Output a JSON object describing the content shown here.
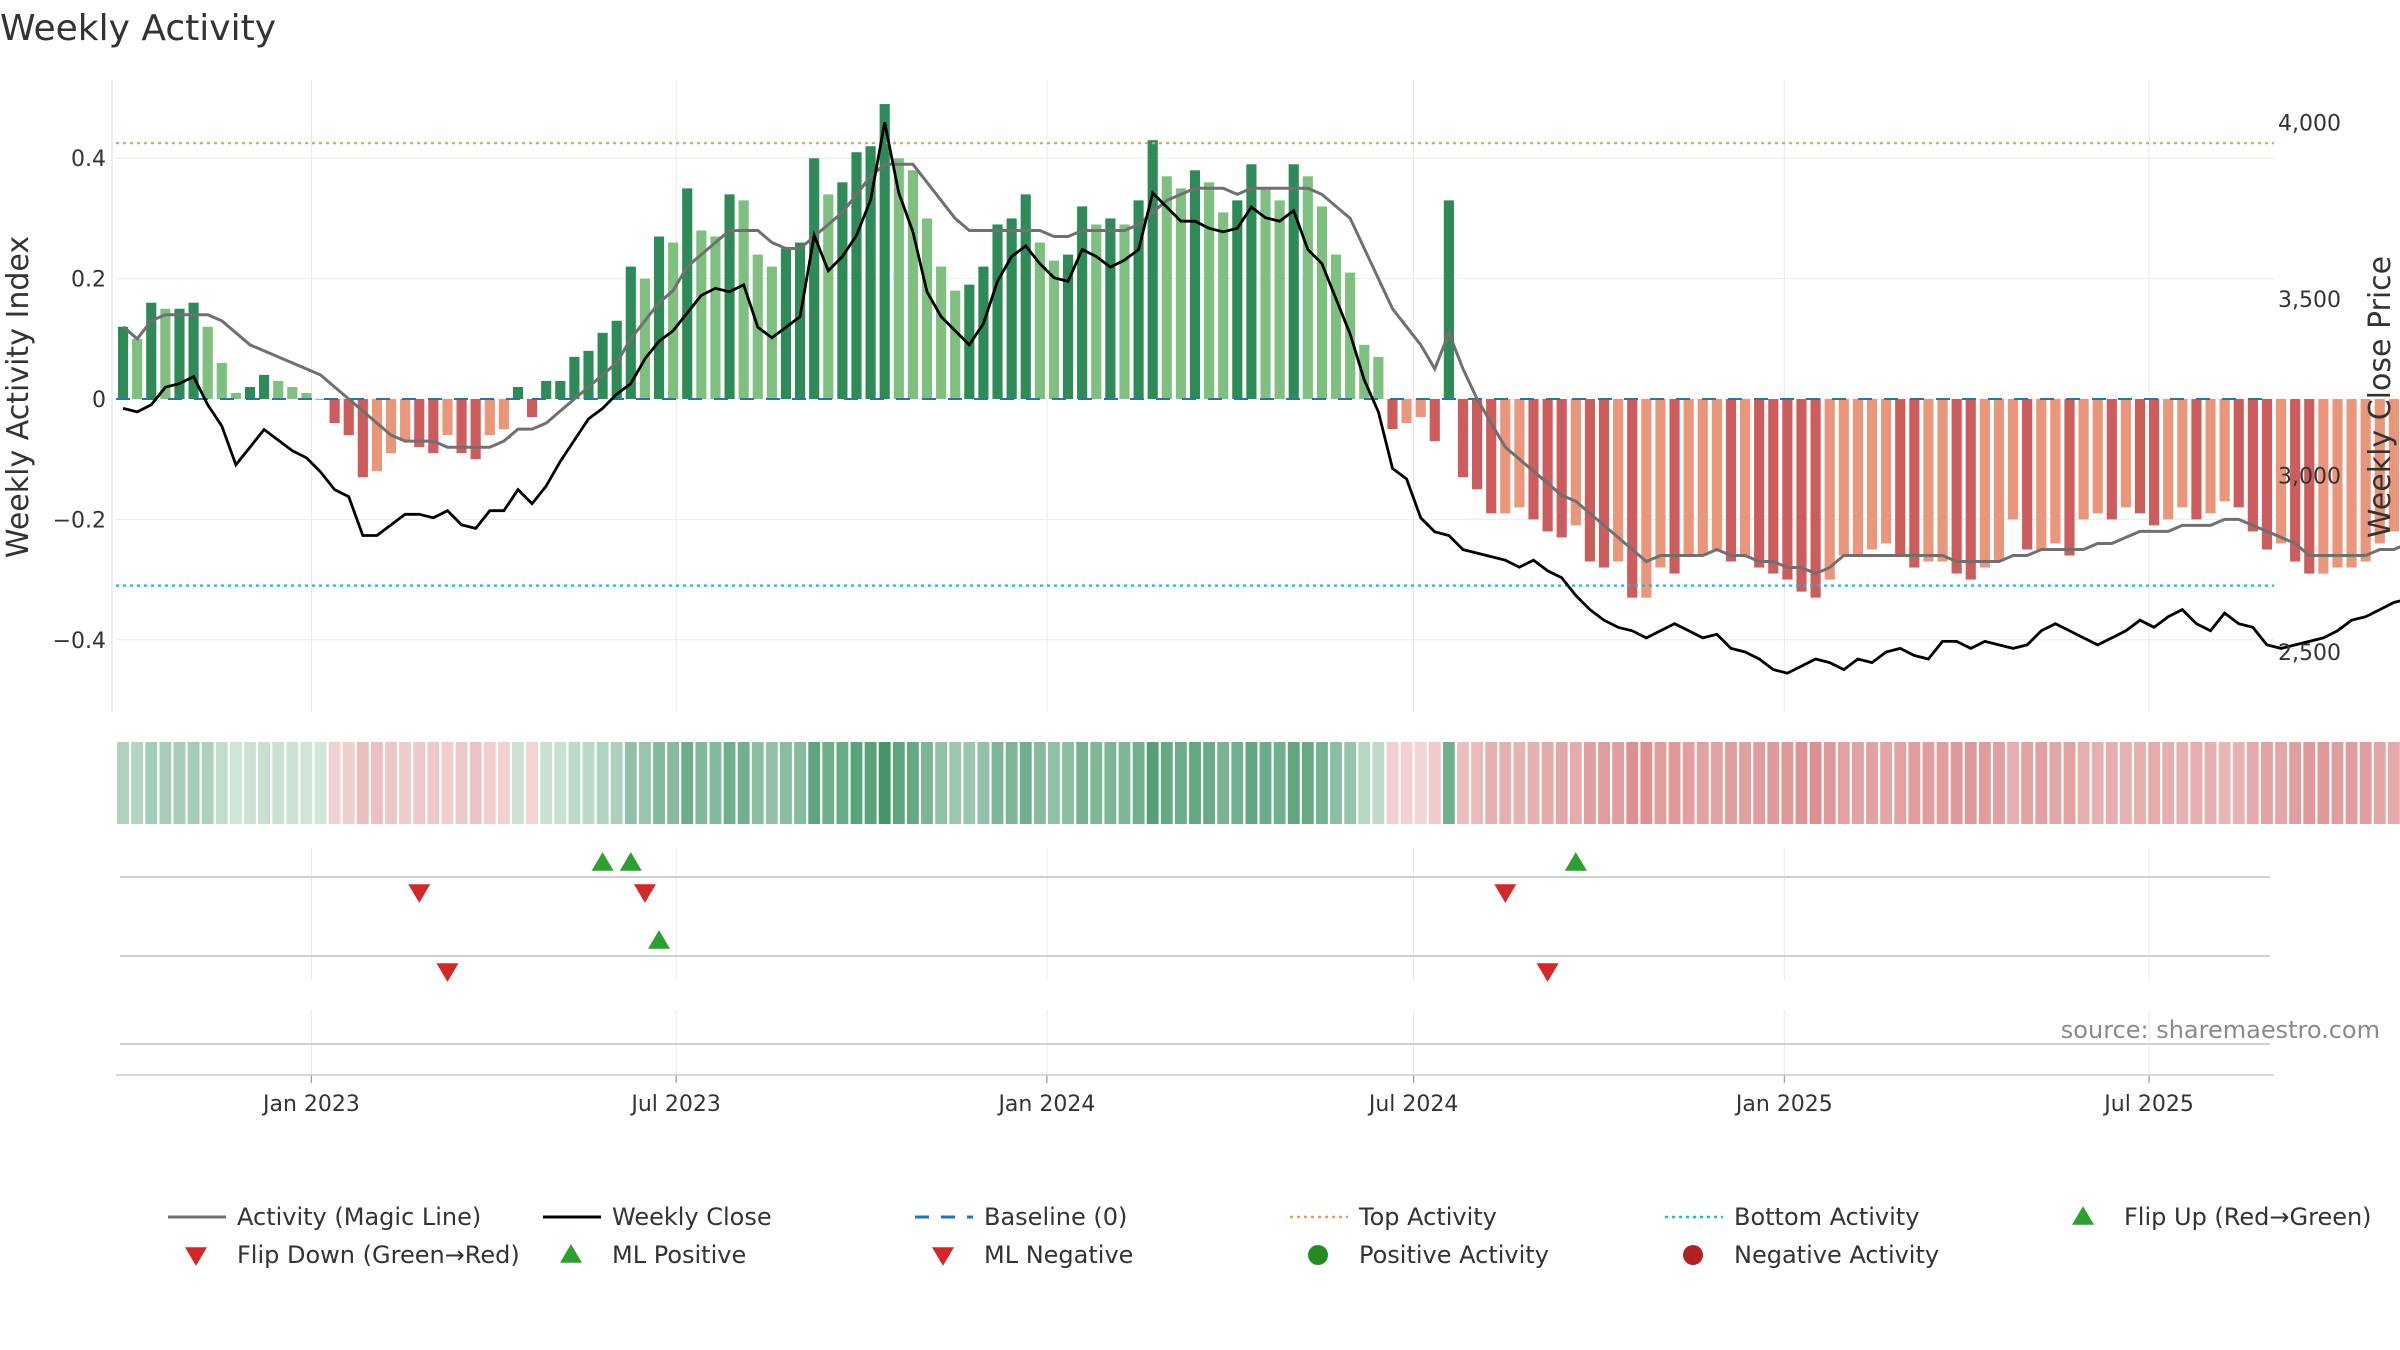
{
  "chart_data": {
    "type": "bar",
    "title": "Weekly Activity",
    "ylabel_left": "Weekly Activity Index",
    "ylabel_right": "Weekly Close Price",
    "source": "source: sharemaestro.com",
    "ylim_left": [
      -0.52,
      0.53
    ],
    "ylim_right": [
      2330,
      4120
    ],
    "yticks_left": [
      {
        "value": 0.4,
        "label": "0.4"
      },
      {
        "value": 0.2,
        "label": "0.2"
      },
      {
        "value": 0,
        "label": "0"
      },
      {
        "value": -0.2,
        "label": "−0.2"
      },
      {
        "value": -0.4,
        "label": "−0.4"
      }
    ],
    "yticks_right": [
      {
        "value": 4000,
        "label": "4,000"
      },
      {
        "value": 3500,
        "label": "3,500"
      },
      {
        "value": 3000,
        "label": "3,000"
      },
      {
        "value": 2500,
        "label": "2,500"
      }
    ],
    "xlim": [
      "2022-09-26",
      "2025-09-01"
    ],
    "x_ticks": [
      {
        "date": "2023-01-01",
        "label": "Jan 2023"
      },
      {
        "date": "2023-07-01",
        "label": "Jul 2023"
      },
      {
        "date": "2024-01-01",
        "label": "Jan 2024"
      },
      {
        "date": "2024-07-01",
        "label": "Jul 2024"
      },
      {
        "date": "2025-01-01",
        "label": "Jan 2025"
      },
      {
        "date": "2025-07-01",
        "label": "Jul 2025"
      }
    ],
    "week_start": "2022-09-26",
    "reference_lines": {
      "top_activity": 0.425,
      "bottom_activity": -0.31,
      "baseline": 0
    },
    "activity": [
      0.12,
      0.1,
      0.16,
      0.15,
      0.15,
      0.16,
      0.12,
      0.06,
      0.01,
      0.02,
      0.04,
      0.03,
      0.02,
      0.01,
      0,
      -0.04,
      -0.06,
      -0.13,
      -0.12,
      -0.09,
      -0.07,
      -0.08,
      -0.09,
      -0.06,
      -0.09,
      -0.1,
      -0.06,
      -0.05,
      0.02,
      -0.03,
      0.03,
      0.03,
      0.07,
      0.08,
      0.11,
      0.13,
      0.22,
      0.2,
      0.27,
      0.26,
      0.35,
      0.28,
      0.27,
      0.34,
      0.33,
      0.24,
      0.22,
      0.25,
      0.26,
      0.4,
      0.34,
      0.36,
      0.41,
      0.42,
      0.49,
      0.4,
      0.38,
      0.3,
      0.22,
      0.18,
      0.19,
      0.22,
      0.29,
      0.3,
      0.34,
      0.26,
      0.23,
      0.24,
      0.32,
      0.29,
      0.3,
      0.29,
      0.33,
      0.43,
      0.37,
      0.35,
      0.38,
      0.36,
      0.31,
      0.33,
      0.39,
      0.35,
      0.33,
      0.39,
      0.37,
      0.32,
      0.24,
      0.21,
      0.09,
      0.07,
      -0.05,
      -0.04,
      -0.03,
      -0.07,
      0.33,
      -0.13,
      -0.15,
      -0.19,
      -0.19,
      -0.18,
      -0.2,
      -0.22,
      -0.23,
      -0.21,
      -0.27,
      -0.28,
      -0.27,
      -0.33,
      -0.33,
      -0.28,
      -0.29,
      -0.26,
      -0.26,
      -0.25,
      -0.27,
      -0.26,
      -0.28,
      -0.29,
      -0.3,
      -0.32,
      -0.33,
      -0.3,
      -0.26,
      -0.26,
      -0.25,
      -0.24,
      -0.26,
      -0.28,
      -0.27,
      -0.27,
      -0.29,
      -0.3,
      -0.28,
      -0.27,
      -0.2,
      -0.25,
      -0.25,
      -0.24,
      -0.26,
      -0.2,
      -0.19,
      -0.2,
      -0.18,
      -0.19,
      -0.21,
      -0.2,
      -0.18,
      -0.2,
      -0.19,
      -0.17,
      -0.18,
      -0.22,
      -0.25,
      -0.24,
      -0.27,
      -0.29,
      -0.29,
      -0.28,
      -0.28,
      -0.27,
      -0.24,
      -0.22,
      -0.2,
      -0.23,
      -0.2,
      -0.22,
      -0.19,
      -0.18
    ],
    "magic_line": [
      0.12,
      0.1,
      0.13,
      0.14,
      0.14,
      0.14,
      0.14,
      0.13,
      0.11,
      0.09,
      0.08,
      0.07,
      0.06,
      0.05,
      0.04,
      0.02,
      0,
      -0.02,
      -0.04,
      -0.06,
      -0.07,
      -0.07,
      -0.07,
      -0.08,
      -0.08,
      -0.08,
      -0.08,
      -0.07,
      -0.05,
      -0.05,
      -0.04,
      -0.02,
      0,
      0.02,
      0.04,
      0.06,
      0.1,
      0.13,
      0.16,
      0.18,
      0.22,
      0.24,
      0.26,
      0.28,
      0.28,
      0.28,
      0.26,
      0.25,
      0.25,
      0.27,
      0.29,
      0.31,
      0.34,
      0.37,
      0.39,
      0.39,
      0.39,
      0.36,
      0.33,
      0.3,
      0.28,
      0.28,
      0.28,
      0.28,
      0.28,
      0.28,
      0.27,
      0.27,
      0.28,
      0.28,
      0.28,
      0.28,
      0.29,
      0.31,
      0.33,
      0.34,
      0.35,
      0.35,
      0.35,
      0.34,
      0.35,
      0.35,
      0.35,
      0.35,
      0.35,
      0.34,
      0.32,
      0.3,
      0.25,
      0.2,
      0.15,
      0.12,
      0.09,
      0.05,
      0.11,
      0.05,
      0,
      -0.04,
      -0.08,
      -0.1,
      -0.12,
      -0.14,
      -0.16,
      -0.17,
      -0.19,
      -0.21,
      -0.23,
      -0.25,
      -0.27,
      -0.26,
      -0.26,
      -0.26,
      -0.26,
      -0.25,
      -0.26,
      -0.26,
      -0.27,
      -0.27,
      -0.28,
      -0.28,
      -0.29,
      -0.28,
      -0.26,
      -0.26,
      -0.26,
      -0.26,
      -0.26,
      -0.26,
      -0.26,
      -0.26,
      -0.27,
      -0.27,
      -0.27,
      -0.27,
      -0.26,
      -0.26,
      -0.25,
      -0.25,
      -0.25,
      -0.25,
      -0.24,
      -0.24,
      -0.23,
      -0.22,
      -0.22,
      -0.22,
      -0.21,
      -0.21,
      -0.21,
      -0.2,
      -0.2,
      -0.21,
      -0.22,
      -0.23,
      -0.24,
      -0.26,
      -0.26,
      -0.26,
      -0.26,
      -0.26,
      -0.25,
      -0.25,
      -0.24,
      -0.24,
      -0.24,
      -0.23,
      -0.22,
      -0.21
    ],
    "weekly_close": [
      3190,
      3180,
      3200,
      3250,
      3260,
      3280,
      3200,
      3140,
      3030,
      3080,
      3130,
      3100,
      3070,
      3050,
      3010,
      2960,
      2940,
      2830,
      2830,
      2860,
      2890,
      2890,
      2880,
      2900,
      2860,
      2850,
      2900,
      2900,
      2960,
      2920,
      2970,
      3040,
      3100,
      3160,
      3190,
      3230,
      3260,
      3330,
      3380,
      3410,
      3460,
      3510,
      3530,
      3520,
      3540,
      3420,
      3390,
      3420,
      3450,
      3680,
      3580,
      3620,
      3680,
      3780,
      4000,
      3800,
      3690,
      3520,
      3450,
      3410,
      3370,
      3430,
      3550,
      3620,
      3650,
      3600,
      3560,
      3550,
      3640,
      3620,
      3590,
      3610,
      3640,
      3800,
      3760,
      3720,
      3720,
      3700,
      3690,
      3700,
      3760,
      3730,
      3720,
      3750,
      3640,
      3600,
      3500,
      3400,
      3270,
      3180,
      3020,
      2990,
      2880,
      2840,
      2830,
      2790,
      2780,
      2770,
      2760,
      2740,
      2760,
      2730,
      2710,
      2660,
      2620,
      2590,
      2570,
      2560,
      2540,
      2560,
      2580,
      2560,
      2540,
      2550,
      2510,
      2500,
      2480,
      2450,
      2440,
      2460,
      2480,
      2470,
      2450,
      2480,
      2470,
      2500,
      2510,
      2490,
      2480,
      2530,
      2530,
      2510,
      2530,
      2520,
      2510,
      2520,
      2560,
      2580,
      2560,
      2540,
      2520,
      2540,
      2560,
      2590,
      2570,
      2600,
      2620,
      2580,
      2560,
      2610,
      2580,
      2570,
      2520,
      2510,
      2520,
      2530,
      2540,
      2560,
      2590,
      2600,
      2620,
      2640,
      2650,
      2660,
      2690,
      2710,
      2740,
      2760,
      2780
    ],
    "flip_up_weeks": [
      34,
      36,
      103
    ],
    "flip_down_weeks": [
      21,
      37,
      98
    ],
    "ml_positive_weeks": [
      38
    ],
    "ml_negative_weeks": [
      23,
      101
    ],
    "legend": [
      {
        "label": "Activity (Magic Line)",
        "style": "line",
        "color": "#707070"
      },
      {
        "label": "Weekly Close",
        "style": "line",
        "color": "#000000"
      },
      {
        "label": "Baseline (0)",
        "style": "dash",
        "color": "#1f77b4"
      },
      {
        "label": "Top Activity",
        "style": "dot",
        "color": "#e0a060"
      },
      {
        "label": "Bottom Activity",
        "style": "dot",
        "color": "#17becf"
      },
      {
        "label": "Flip Up (Red→Green)",
        "style": "tri-up",
        "color": "#2ca02c"
      },
      {
        "label": "Flip Down (Green→Red)",
        "style": "tri-down",
        "color": "#d62728"
      },
      {
        "label": "ML Positive",
        "style": "tri-up",
        "color": "#2ca02c"
      },
      {
        "label": "ML Negative",
        "style": "tri-down",
        "color": "#d62728"
      },
      {
        "label": "Positive Activity",
        "style": "circle",
        "color": "#228b22"
      },
      {
        "label": "Negative Activity",
        "style": "circle",
        "color": "#b22222"
      }
    ],
    "colors": {
      "pos_strong": "#2e8b57",
      "pos_light": "#7fc080",
      "neg_strong": "#cd5c5c",
      "neg_light": "#e9967a",
      "magic_line": "#707070",
      "weekly_close": "#000000",
      "baseline": "#1f77b4",
      "top": "#e0a060",
      "bottom": "#17becf",
      "tri_up": "#2ca02c",
      "tri_down": "#d62728"
    }
  }
}
